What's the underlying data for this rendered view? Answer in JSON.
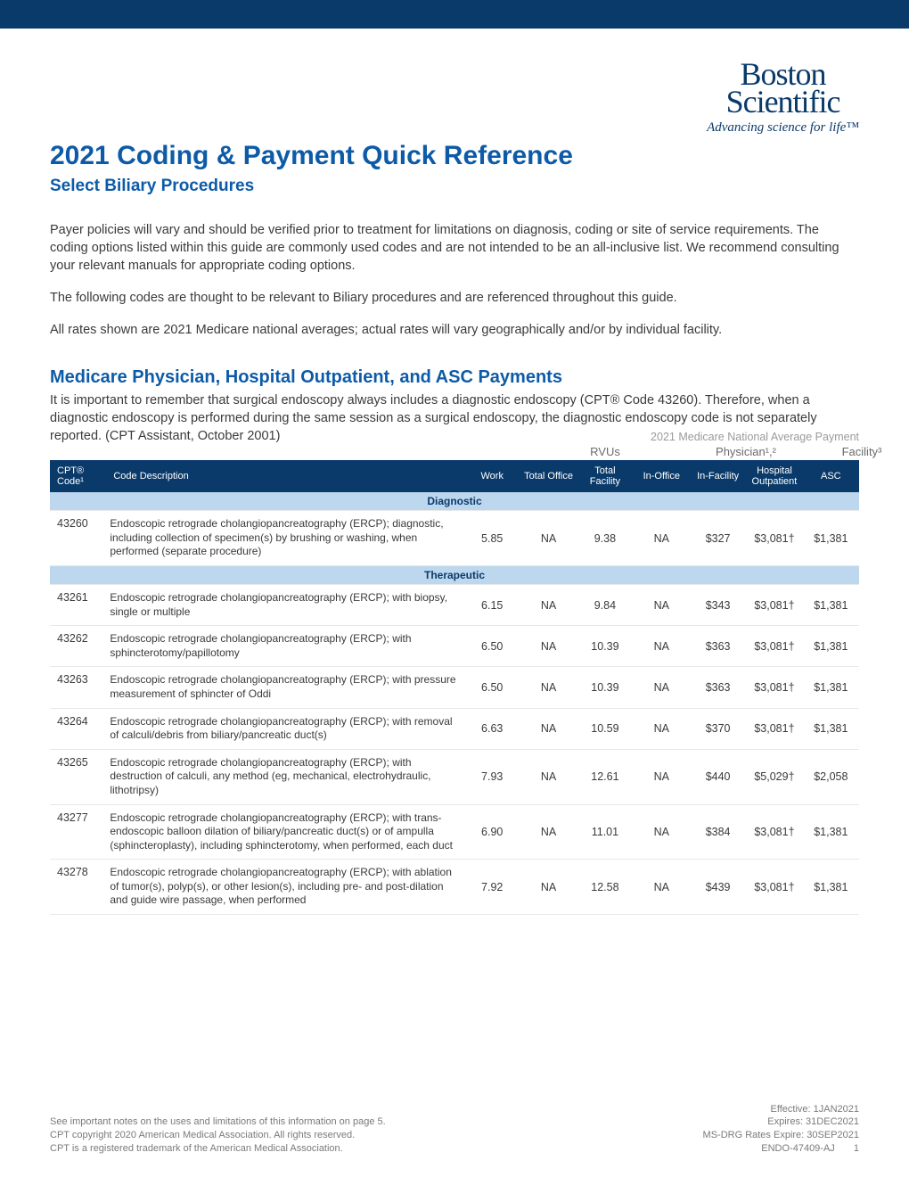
{
  "colors": {
    "brand_dark": "#0a3a6a",
    "brand_blue": "#0d5ba8",
    "header_bg": "#0a3a6a",
    "category_bg": "#bdd7ee",
    "text": "#3a3a3a",
    "muted": "#9a9a9a",
    "row_border": "#e8e8e8",
    "white": "#ffffff"
  },
  "logo": {
    "line1": "Boston",
    "line2": "Scientific",
    "tagline": "Advancing science for life™"
  },
  "title": "2021 Coding & Payment Quick Reference",
  "subtitle": "Select Biliary Procedures",
  "paragraphs": {
    "p1": "Payer policies will vary and should be verified prior to treatment for limitations on diagnosis, coding or site of service requirements. The coding options listed within this guide are commonly used codes and are not intended to be an all-inclusive list. We recommend consulting your relevant manuals for appropriate coding options.",
    "p2": "The following codes are thought to be relevant to Biliary procedures and are referenced throughout this guide.",
    "p3": "All rates shown are 2021 Medicare national averages; actual rates will vary geographically and/or by individual facility."
  },
  "section_heading": "Medicare Physician, Hospital Outpatient, and ASC Payments",
  "section_text": "It is important to remember that surgical endoscopy always includes a diagnostic endoscopy (CPT® Code 43260). Therefore, when a diagnostic endoscopy is performed during the same session as a surgical endoscopy, the diagnostic endoscopy code is not separately reported. (CPT Assistant, October 2001)",
  "table_note": "2021 Medicare National Average Payment",
  "group_headers": {
    "rvus": "RVUs",
    "physician": "Physician¹,²",
    "facility": "Facility³"
  },
  "columns": {
    "code": "CPT® Code¹",
    "desc": "Code Description",
    "work": "Work",
    "total_office": "Total Office",
    "total_facility": "Total Facility",
    "in_office": "In-Office",
    "in_facility": "In-Facility",
    "hosp_out": "Hospital Outpatient",
    "asc": "ASC"
  },
  "categories": [
    {
      "name": "Diagnostic",
      "rows": [
        {
          "code": "43260",
          "desc": "Endoscopic retrograde cholangiopancreatography (ERCP); diagnostic, including collection of specimen(s) by brushing or washing, when performed (separate procedure)",
          "work": "5.85",
          "total_office": "NA",
          "total_facility": "9.38",
          "in_office": "NA",
          "in_facility": "$327",
          "hosp_out": "$3,081†",
          "asc": "$1,381"
        }
      ]
    },
    {
      "name": "Therapeutic",
      "rows": [
        {
          "code": "43261",
          "desc": "Endoscopic retrograde cholangiopancreatography (ERCP); with biopsy, single or multiple",
          "work": "6.15",
          "total_office": "NA",
          "total_facility": "9.84",
          "in_office": "NA",
          "in_facility": "$343",
          "hosp_out": "$3,081†",
          "asc": "$1,381"
        },
        {
          "code": "43262",
          "desc": "Endoscopic retrograde cholangiopancreatography (ERCP); with sphincterotomy/papillotomy",
          "work": "6.50",
          "total_office": "NA",
          "total_facility": "10.39",
          "in_office": "NA",
          "in_facility": "$363",
          "hosp_out": "$3,081†",
          "asc": "$1,381"
        },
        {
          "code": "43263",
          "desc": "Endoscopic retrograde cholangiopancreatography (ERCP); with pressure measurement of sphincter of Oddi",
          "work": "6.50",
          "total_office": "NA",
          "total_facility": "10.39",
          "in_office": "NA",
          "in_facility": "$363",
          "hosp_out": "$3,081†",
          "asc": "$1,381"
        },
        {
          "code": "43264",
          "desc": "Endoscopic retrograde cholangiopancreatography (ERCP); with removal of calculi/debris from biliary/pancreatic duct(s)",
          "work": "6.63",
          "total_office": "NA",
          "total_facility": "10.59",
          "in_office": "NA",
          "in_facility": "$370",
          "hosp_out": "$3,081†",
          "asc": "$1,381"
        },
        {
          "code": "43265",
          "desc": "Endoscopic retrograde cholangiopancreatography (ERCP); with destruction of calculi, any method (eg, mechanical, electrohydraulic, lithotripsy)",
          "work": "7.93",
          "total_office": "NA",
          "total_facility": "12.61",
          "in_office": "NA",
          "in_facility": "$440",
          "hosp_out": "$5,029†",
          "asc": "$2,058"
        },
        {
          "code": "43277",
          "desc": "Endoscopic retrograde cholangiopancreatography (ERCP); with trans-endoscopic balloon dilation of biliary/pancreatic duct(s) or of ampulla (sphincteroplasty), including sphincterotomy, when performed, each duct",
          "work": "6.90",
          "total_office": "NA",
          "total_facility": "11.01",
          "in_office": "NA",
          "in_facility": "$384",
          "hosp_out": "$3,081†",
          "asc": "$1,381"
        },
        {
          "code": "43278",
          "desc": "Endoscopic retrograde cholangiopancreatography (ERCP); with ablation of tumor(s), polyp(s), or other lesion(s), including pre- and post-dilation and guide wire passage, when performed",
          "work": "7.92",
          "total_office": "NA",
          "total_facility": "12.58",
          "in_office": "NA",
          "in_facility": "$439",
          "hosp_out": "$3,081†",
          "asc": "$1,381"
        }
      ]
    }
  ],
  "footer": {
    "left1": "See important notes on the uses and limitations of this information on page 5.",
    "left2": "CPT copyright 2020 American Medical Association. All rights reserved.",
    "left3": "CPT is a registered trademark of the American Medical Association.",
    "effective": "Effective: 1JAN2021",
    "expires": "Expires: 31DEC2021",
    "msdrg": "MS-DRG Rates Expire: 30SEP2021",
    "docid": "ENDO-47409-AJ",
    "page": "1"
  }
}
